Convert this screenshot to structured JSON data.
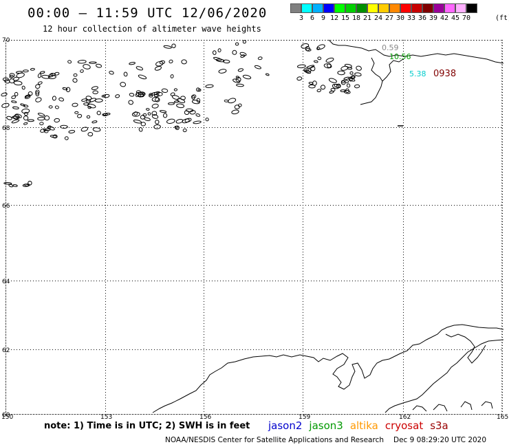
{
  "header": {
    "title": "00:00 – 11:59 UTC 12/06/2020",
    "subtitle": "12 hour collection of altimeter wave heights"
  },
  "legend": {
    "unit": "(ft)",
    "colors": [
      "#808080",
      "#00ffff",
      "#00b0ff",
      "#0000ff",
      "#00ff00",
      "#00d000",
      "#009000",
      "#ffff00",
      "#ffcc00",
      "#ff8800",
      "#ff0000",
      "#c80000",
      "#800000",
      "#990099",
      "#ff66ff",
      "#ffb0ff",
      "#000000"
    ],
    "labels": [
      "3",
      "6",
      "9",
      "12",
      "15",
      "18",
      "21",
      "24",
      "27",
      "30",
      "33",
      "36",
      "39",
      "42",
      "45",
      "70"
    ]
  },
  "map": {
    "lat_labels": [
      "70",
      "68",
      "66",
      "64",
      "62",
      "60"
    ],
    "lon_labels": [
      "150",
      "153",
      "156",
      "159",
      "162",
      "165"
    ],
    "readings": [
      {
        "text": "0.59",
        "color": "#888888"
      },
      {
        "text": "10.56",
        "color": "#009900"
      },
      {
        "text": "5.38",
        "color": "#00cccc"
      },
      {
        "text": "0938",
        "color": "#800000"
      }
    ]
  },
  "footer": {
    "note": "note: 1) Time is in UTC; 2) SWH is in feet",
    "satellites": [
      {
        "name": "jason2",
        "color": "#0000cc"
      },
      {
        "name": "jason3",
        "color": "#009900"
      },
      {
        "name": "altika",
        "color": "#ff9900"
      },
      {
        "name": "cryosat",
        "color": "#cc0000"
      },
      {
        "name": "s3a",
        "color": "#990000"
      }
    ],
    "credit": "NOAA/NESDIS Center for Satellite Applications and Research",
    "timestamp": "Dec  9 08:29:20 UTC 2020"
  }
}
